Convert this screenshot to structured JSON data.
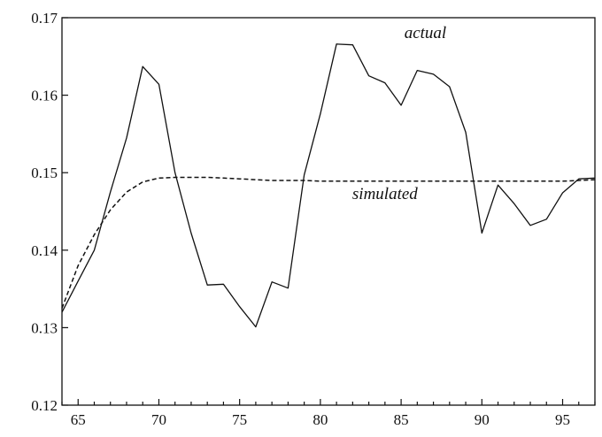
{
  "chart_data": {
    "type": "line",
    "title": "",
    "xlabel": "",
    "ylabel": "",
    "xlim": [
      64,
      97
    ],
    "ylim": [
      0.12,
      0.17
    ],
    "x_ticks": [
      65,
      70,
      75,
      80,
      85,
      90,
      95
    ],
    "y_ticks": [
      "0.12",
      "0.13",
      "0.14",
      "0.15",
      "0.16",
      "0.17"
    ],
    "grid": false,
    "legend": "none",
    "annotations": {
      "actual": {
        "text": "actual",
        "x": 86.5,
        "y": 0.1674
      },
      "simulated": {
        "text": "simulated",
        "x": 84.0,
        "y": 0.1466
      }
    },
    "series": [
      {
        "key": "actual",
        "style": "solid",
        "x": [
          64,
          65,
          66,
          67,
          68,
          69,
          70,
          71,
          72,
          73,
          74,
          75,
          76,
          77,
          78,
          79,
          80,
          81,
          82,
          83,
          84,
          85,
          86,
          87,
          88,
          89,
          90,
          91,
          92,
          93,
          94,
          95,
          96,
          97
        ],
        "y": [
          0.132,
          0.136,
          0.14,
          0.1475,
          0.1545,
          0.1637,
          0.1614,
          0.15,
          0.1422,
          0.1355,
          0.1356,
          0.1327,
          0.1301,
          0.1359,
          0.1351,
          0.1497,
          0.1576,
          0.1666,
          0.1665,
          0.1625,
          0.1616,
          0.1587,
          0.1632,
          0.1627,
          0.1611,
          0.1552,
          0.1422,
          0.1484,
          0.146,
          0.1432,
          0.144,
          0.1474,
          0.1492,
          0.1493
        ]
      },
      {
        "key": "simulated",
        "style": "dashed",
        "x": [
          64,
          65,
          66,
          67,
          68,
          69,
          70,
          71,
          72,
          73,
          74,
          75,
          76,
          77,
          78,
          79,
          80,
          81,
          82,
          83,
          84,
          85,
          86,
          87,
          88,
          89,
          90,
          91,
          92,
          93,
          94,
          95,
          96,
          97
        ],
        "y": [
          0.1325,
          0.138,
          0.142,
          0.1452,
          0.1475,
          0.1488,
          0.1493,
          0.1494,
          0.1494,
          0.1494,
          0.1493,
          0.1492,
          0.1491,
          0.149,
          0.149,
          0.149,
          0.1489,
          0.1489,
          0.1489,
          0.1489,
          0.1489,
          0.1489,
          0.1489,
          0.1489,
          0.1489,
          0.1489,
          0.1489,
          0.1489,
          0.1489,
          0.1489,
          0.1489,
          0.1489,
          0.149,
          0.1491
        ]
      }
    ]
  }
}
